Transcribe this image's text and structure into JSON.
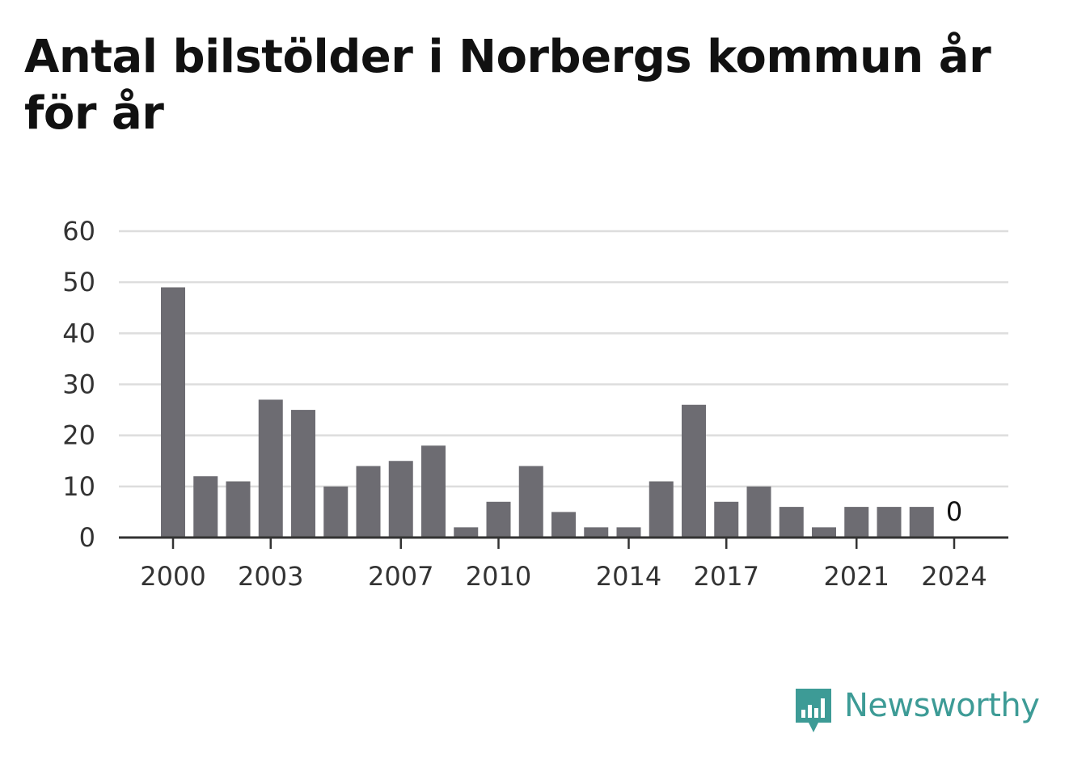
{
  "title": "Antal bilstölder i Norbergs kommun år för år",
  "brand": {
    "name": "Newsworthy",
    "icon": "newsworthy-logo-icon",
    "color": "#3d9b96"
  },
  "colors": {
    "bar": "#6d6c72",
    "grid": "#dddddd",
    "axis": "#333333"
  },
  "chart_data": {
    "type": "bar",
    "title": "Antal bilstölder i Norbergs kommun år för år",
    "xlabel": "",
    "ylabel": "",
    "categories": [
      "2000",
      "2001",
      "2002",
      "2003",
      "2004",
      "2005",
      "2006",
      "2007",
      "2008",
      "2009",
      "2010",
      "2011",
      "2012",
      "2013",
      "2014",
      "2015",
      "2016",
      "2017",
      "2018",
      "2019",
      "2020",
      "2021",
      "2022",
      "2023",
      "2024"
    ],
    "values": [
      49,
      12,
      11,
      27,
      25,
      10,
      14,
      15,
      18,
      2,
      7,
      14,
      5,
      2,
      2,
      11,
      26,
      7,
      10,
      6,
      2,
      6,
      6,
      6,
      0
    ],
    "ylim": [
      0,
      60
    ],
    "yticks": [
      "0",
      "10",
      "20",
      "30",
      "40",
      "50",
      "60"
    ],
    "xticks": [
      "2000",
      "2003",
      "2007",
      "2010",
      "2014",
      "2017",
      "2021",
      "2024"
    ],
    "annotations": [
      {
        "x": "2024",
        "text": "0"
      }
    ],
    "grid": true,
    "legend": "none"
  }
}
